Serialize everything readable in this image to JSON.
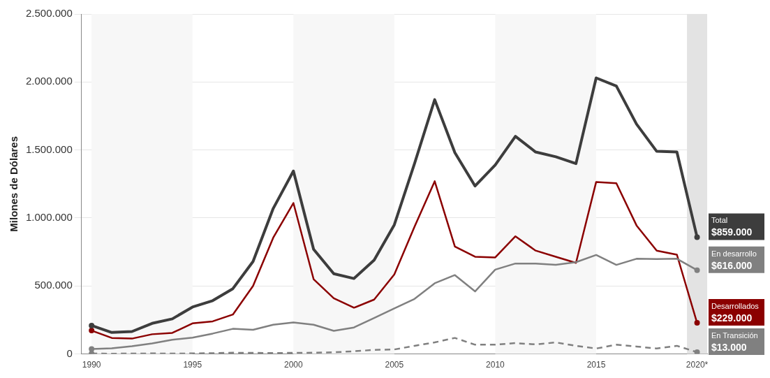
{
  "chart_data": {
    "type": "line",
    "ylabel": "Milones de Dólares",
    "x": [
      1990,
      1991,
      1992,
      1993,
      1994,
      1995,
      1996,
      1997,
      1998,
      1999,
      2000,
      2001,
      2002,
      2003,
      2004,
      2005,
      2006,
      2007,
      2008,
      2009,
      2010,
      2011,
      2012,
      2013,
      2014,
      2015,
      2016,
      2017,
      2018,
      2019,
      2020
    ],
    "series": [
      {
        "name": "Total",
        "color": "#3d3d3d",
        "values": [
          209000,
          158000,
          165000,
          225000,
          258000,
          345000,
          392000,
          480000,
          680000,
          1070000,
          1345000,
          770000,
          590000,
          555000,
          690000,
          950000,
          1400000,
          1870000,
          1480000,
          1235000,
          1390000,
          1600000,
          1485000,
          1450000,
          1400000,
          2030000,
          1970000,
          1690000,
          1490000,
          1485000,
          859000
        ],
        "value_labels": [
          null,
          null,
          null,
          null,
          null,
          null,
          null,
          null,
          null,
          null,
          null,
          null,
          null,
          null,
          null,
          null,
          null,
          null,
          null,
          null,
          null,
          null,
          null,
          null,
          null,
          null,
          null,
          null,
          null,
          null,
          "$859.000"
        ]
      },
      {
        "name": "En desarrollo",
        "color": "#808080",
        "values": [
          37000,
          42000,
          57000,
          78000,
          105000,
          120000,
          150000,
          185000,
          178000,
          215000,
          232000,
          215000,
          170000,
          195000,
          265000,
          335000,
          405000,
          520000,
          580000,
          460000,
          620000,
          665000,
          665000,
          655000,
          675000,
          728000,
          655000,
          700000,
          698000,
          700000,
          616000
        ],
        "value_labels": [
          null,
          null,
          null,
          null,
          null,
          null,
          null,
          null,
          null,
          null,
          null,
          null,
          null,
          null,
          null,
          null,
          null,
          null,
          null,
          null,
          null,
          null,
          null,
          null,
          null,
          null,
          null,
          null,
          null,
          null,
          "$616.000"
        ]
      },
      {
        "name": "Desarrollados",
        "color": "#8b0000",
        "values": [
          172000,
          118000,
          113000,
          145000,
          155000,
          225000,
          240000,
          290000,
          500000,
          855000,
          1110000,
          550000,
          410000,
          340000,
          400000,
          585000,
          935000,
          1270000,
          790000,
          715000,
          710000,
          865000,
          760000,
          715000,
          670000,
          1265000,
          1255000,
          945000,
          760000,
          730000,
          229000
        ],
        "value_labels": [
          null,
          null,
          null,
          null,
          null,
          null,
          null,
          null,
          null,
          null,
          null,
          null,
          null,
          null,
          null,
          null,
          null,
          null,
          null,
          null,
          null,
          null,
          null,
          null,
          null,
          null,
          null,
          null,
          null,
          null,
          "$229.000"
        ]
      },
      {
        "name": "En Transición",
        "color": "#808080",
        "line_style": "dashed",
        "values": [
          3000,
          2000,
          3000,
          4000,
          3000,
          4000,
          6000,
          9000,
          8000,
          7000,
          8000,
          9000,
          12000,
          20000,
          30000,
          33000,
          60000,
          85000,
          118000,
          68000,
          68000,
          80000,
          70000,
          85000,
          60000,
          40000,
          68000,
          55000,
          40000,
          60000,
          13000
        ],
        "value_labels": [
          null,
          null,
          null,
          null,
          null,
          null,
          null,
          null,
          null,
          null,
          null,
          null,
          null,
          null,
          null,
          null,
          null,
          null,
          null,
          null,
          null,
          null,
          null,
          null,
          null,
          null,
          null,
          null,
          null,
          null,
          "$13.000"
        ]
      }
    ],
    "xlim": [
      1989.5,
      2020.5
    ],
    "xticks": [
      1990,
      1995,
      2000,
      2005,
      2010,
      2015,
      {
        "value": 2020,
        "label": "2020*"
      }
    ],
    "ylim": [
      0,
      2500000
    ],
    "yticks": [
      0,
      {
        "value": 500000,
        "label": "500.000"
      },
      {
        "value": 1000000,
        "label": "1.000.000"
      },
      {
        "value": 1500000,
        "label": "1.500.000"
      },
      {
        "value": 2000000,
        "label": "2.000.000"
      },
      {
        "value": 2500000,
        "label": "2.500.000"
      }
    ],
    "bands": [
      {
        "axis": "x",
        "from": 1990,
        "to": 1995,
        "color": "#f7f7f7"
      },
      {
        "axis": "x",
        "from": 2000,
        "to": 2005,
        "color": "#f7f7f7"
      },
      {
        "axis": "x",
        "from": 2010,
        "to": 2015,
        "color": "#f7f7f7"
      },
      {
        "axis": "x",
        "from": 2019.5,
        "to": 2020.5,
        "color": "#e3e3e3"
      }
    ],
    "grid": "y"
  }
}
